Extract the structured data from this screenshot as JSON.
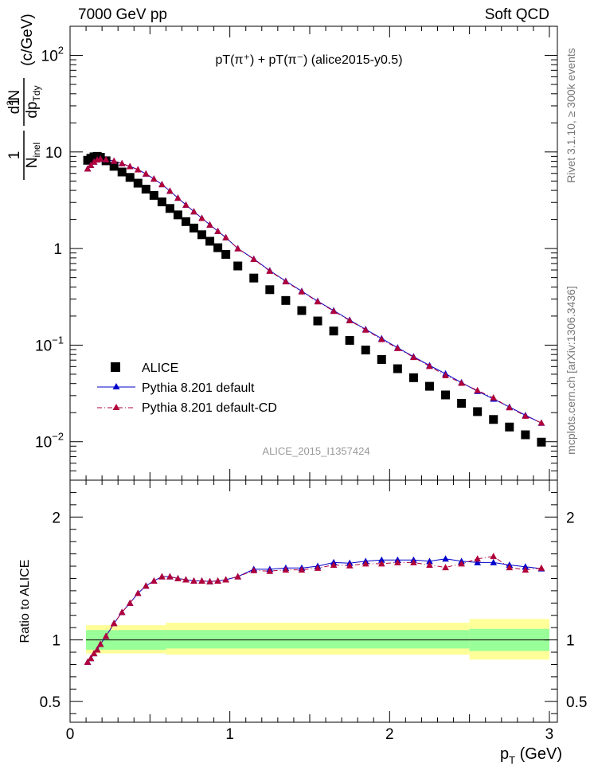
{
  "header": {
    "energy_label": "7000 GeV pp",
    "process_label": "Soft QCD"
  },
  "side_text": {
    "rivet": "Rivet 3.1.10, ≥ 300k events",
    "mcplots": "mcplots.cern.ch [arXiv:1306.3436]"
  },
  "analysis_label": "ALICE_2015_I1357424",
  "colors": {
    "data": "#000000",
    "pythia_default": "#0000cc",
    "pythia_cd": "#b0003a",
    "band_inner": "#99ff99",
    "band_outer": "#ffff99"
  },
  "chart_data": [
    {
      "type": "scatter",
      "title": "pT(π⁺) + pT(π⁻) (alice2015-y0.5)",
      "ylabel": "1/N_inel d²N/dp_T dy (c/GeV)",
      "ylabel_parts": {
        "frac_num": "1",
        "frac_den": "N",
        "frac_den_sub": "inel",
        "d2": "d",
        "d2_sup": "2",
        "N": "N",
        "dp": "dp",
        "dp_sub": "Tdy",
        "unit": "(c/GeV)"
      },
      "xlabel": "",
      "xlim": [
        0,
        3.05
      ],
      "ylim": [
        0.004,
        200
      ],
      "yscale": "log",
      "yticks": [
        {
          "value": 0.01,
          "base": "10",
          "exp": "−2"
        },
        {
          "value": 0.1,
          "base": "10",
          "exp": "−1"
        },
        {
          "value": 1,
          "base": "1",
          "exp": ""
        },
        {
          "value": 10,
          "base": "10",
          "exp": ""
        },
        {
          "value": 100,
          "base": "10",
          "exp": "2"
        }
      ],
      "legend_position": "bottom-left",
      "x": [
        0.11,
        0.13,
        0.15,
        0.17,
        0.19,
        0.225,
        0.275,
        0.325,
        0.375,
        0.425,
        0.475,
        0.525,
        0.575,
        0.625,
        0.675,
        0.725,
        0.775,
        0.825,
        0.875,
        0.925,
        0.975,
        1.05,
        1.15,
        1.25,
        1.35,
        1.45,
        1.55,
        1.65,
        1.75,
        1.85,
        1.95,
        2.05,
        2.15,
        2.25,
        2.35,
        2.45,
        2.55,
        2.65,
        2.75,
        2.85,
        2.95
      ],
      "series": [
        {
          "name": "ALICE",
          "marker": "square",
          "values": [
            8.2,
            8.6,
            8.9,
            9.0,
            8.8,
            8.1,
            7.1,
            6.2,
            5.45,
            4.75,
            4.12,
            3.55,
            3.04,
            2.6,
            2.23,
            1.9,
            1.63,
            1.39,
            1.19,
            1.02,
            0.87,
            0.66,
            0.495,
            0.375,
            0.29,
            0.228,
            0.178,
            0.14,
            0.112,
            0.089,
            0.071,
            0.057,
            0.046,
            0.0375,
            0.0305,
            0.025,
            0.0205,
            0.017,
            0.0142,
            0.0118,
            0.0099
          ]
        },
        {
          "name": "Pythia 8.201 default",
          "marker": "triangle",
          "line": "solid",
          "values": [
            6.7,
            7.3,
            7.9,
            8.3,
            8.5,
            8.35,
            8.05,
            7.6,
            7.08,
            6.56,
            5.94,
            5.26,
            4.61,
            3.94,
            3.34,
            2.83,
            2.41,
            2.06,
            1.76,
            1.51,
            1.3,
            1.0,
            0.78,
            0.59,
            0.46,
            0.362,
            0.285,
            0.228,
            0.182,
            0.146,
            0.117,
            0.094,
            0.076,
            0.0615,
            0.0506,
            0.041,
            0.0334,
            0.0277,
            0.0229,
            0.0188,
            0.0156
          ]
        },
        {
          "name": "Pythia 8.201 default-CD",
          "marker": "triangle",
          "line": "dashdot",
          "values": [
            6.7,
            7.3,
            7.9,
            8.3,
            8.5,
            8.35,
            8.05,
            7.6,
            7.08,
            6.56,
            5.94,
            5.26,
            4.61,
            3.94,
            3.34,
            2.83,
            2.41,
            2.06,
            1.76,
            1.51,
            1.3,
            1.0,
            0.775,
            0.585,
            0.455,
            0.358,
            0.282,
            0.225,
            0.18,
            0.144,
            0.115,
            0.0928,
            0.075,
            0.0605,
            0.0485,
            0.0405,
            0.034,
            0.0285,
            0.0226,
            0.0185,
            0.0157
          ]
        }
      ]
    },
    {
      "type": "scatter",
      "ylabel": "Ratio to ALICE",
      "xlabel": "p_T (GeV)",
      "xlabel_parts": {
        "p": "p",
        "sub": "T",
        "unit": " (GeV)"
      },
      "xlim": [
        0,
        3.05
      ],
      "ylim": [
        0.33,
        2.3
      ],
      "xticks": [
        0,
        1,
        2,
        3
      ],
      "yticks": [
        0.5,
        1,
        2
      ],
      "x": [
        0.11,
        0.13,
        0.15,
        0.17,
        0.19,
        0.225,
        0.275,
        0.325,
        0.375,
        0.425,
        0.475,
        0.525,
        0.575,
        0.625,
        0.675,
        0.725,
        0.775,
        0.825,
        0.875,
        0.925,
        0.975,
        1.05,
        1.15,
        1.25,
        1.35,
        1.45,
        1.55,
        1.65,
        1.75,
        1.85,
        1.95,
        2.05,
        2.15,
        2.25,
        2.35,
        2.45,
        2.55,
        2.65,
        2.75,
        2.85,
        2.95
      ],
      "series": [
        {
          "name": "Pythia 8.201 default",
          "marker": "triangle",
          "line": "solid",
          "values": [
            0.82,
            0.85,
            0.89,
            0.92,
            0.965,
            1.03,
            1.135,
            1.225,
            1.3,
            1.38,
            1.44,
            1.48,
            1.515,
            1.515,
            1.5,
            1.49,
            1.48,
            1.48,
            1.475,
            1.48,
            1.49,
            1.515,
            1.575,
            1.575,
            1.585,
            1.585,
            1.6,
            1.63,
            1.625,
            1.64,
            1.65,
            1.65,
            1.65,
            1.64,
            1.66,
            1.64,
            1.63,
            1.63,
            1.61,
            1.595,
            1.58
          ]
        },
        {
          "name": "Pythia 8.201 default-CD",
          "marker": "triangle",
          "line": "dashdot",
          "values": [
            0.82,
            0.85,
            0.89,
            0.92,
            0.965,
            1.03,
            1.135,
            1.225,
            1.3,
            1.38,
            1.44,
            1.48,
            1.515,
            1.515,
            1.5,
            1.49,
            1.48,
            1.48,
            1.475,
            1.48,
            1.49,
            1.515,
            1.565,
            1.56,
            1.57,
            1.57,
            1.585,
            1.61,
            1.605,
            1.62,
            1.62,
            1.63,
            1.63,
            1.61,
            1.59,
            1.62,
            1.66,
            1.68,
            1.59,
            1.57,
            1.585
          ]
        }
      ],
      "bands": {
        "x_edges": [
          0.1,
          0.6,
          2.5,
          3.0
        ],
        "inner": [
          [
            0.92,
            1.08
          ],
          [
            0.93,
            1.08
          ],
          [
            0.91,
            1.09
          ]
        ],
        "outer": [
          [
            0.89,
            1.12
          ],
          [
            0.88,
            1.14
          ],
          [
            0.84,
            1.17
          ]
        ]
      }
    }
  ]
}
